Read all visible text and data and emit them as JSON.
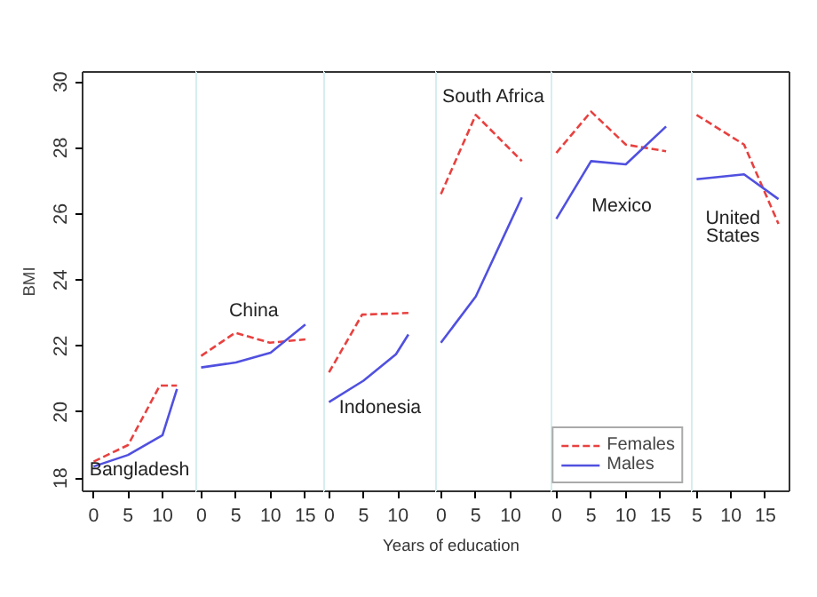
{
  "chart_data": [
    {
      "type": "line",
      "ylabel": "BMI",
      "xlim": [
        -1.6,
        14.9
      ],
      "ylim": [
        17.6,
        30.3
      ],
      "xticks": [
        0,
        5,
        10
      ],
      "yticks": [
        18,
        20,
        22,
        24,
        26,
        28,
        30
      ],
      "annotations": [
        "Bangladesh"
      ],
      "series": [
        {
          "color": "#e8413f",
          "line_style": "dashed",
          "x": [
            0,
            5,
            9.6,
            12.1
          ],
          "values": [
            18.5,
            19.0,
            20.8,
            20.8
          ]
        },
        {
          "color": "#5050e0",
          "line_style": "solid",
          "x": [
            0,
            5,
            10,
            12.1
          ],
          "values": [
            18.35,
            18.7,
            19.3,
            20.7
          ]
        }
      ]
    },
    {
      "type": "line",
      "xlim": [
        -0.7,
        17.7
      ],
      "ylim": [
        17.6,
        30.3
      ],
      "xticks": [
        0,
        5,
        10,
        15
      ],
      "yticks": [
        18,
        20,
        22,
        24,
        26,
        28,
        30
      ],
      "tick_labels": "x",
      "annotations": [
        "China"
      ],
      "series": [
        {
          "color": "#e8413f",
          "line_style": "dashed",
          "x": [
            0,
            4.9,
            9.9,
            15
          ],
          "values": [
            21.7,
            22.4,
            22.1,
            22.2
          ]
        },
        {
          "color": "#5050e0",
          "line_style": "solid",
          "x": [
            0,
            5,
            10,
            15
          ],
          "values": [
            21.35,
            21.5,
            21.8,
            22.65
          ]
        }
      ]
    },
    {
      "type": "line",
      "xlabel": "Years of education",
      "xlim": [
        -0.7,
        15.5
      ],
      "ylim": [
        17.6,
        30.3
      ],
      "xticks": [
        0,
        5,
        10
      ],
      "yticks": [
        18,
        20,
        22,
        24,
        26,
        28,
        30
      ],
      "tick_labels": "x",
      "annotations": [
        "Indonesia"
      ],
      "series": [
        {
          "color": "#e8413f",
          "line_style": "dashed",
          "x": [
            0,
            4.8,
            11.5
          ],
          "values": [
            21.2,
            22.95,
            23.0
          ]
        },
        {
          "color": "#5050e0",
          "line_style": "solid",
          "x": [
            0,
            5,
            9.7,
            11.5
          ],
          "values": [
            20.3,
            20.95,
            21.75,
            22.35
          ]
        }
      ]
    },
    {
      "type": "line",
      "xlim": [
        -0.7,
        15.85
      ],
      "ylim": [
        17.6,
        30.3
      ],
      "xticks": [
        0,
        5,
        10
      ],
      "yticks": [
        18,
        20,
        22,
        24,
        26,
        28,
        30
      ],
      "tick_labels": "x",
      "annotations": [
        "South Africa"
      ],
      "series": [
        {
          "color": "#e8413f",
          "line_style": "dashed",
          "x": [
            0,
            5,
            11.6
          ],
          "values": [
            26.6,
            29.0,
            27.6
          ]
        },
        {
          "color": "#5050e0",
          "line_style": "solid",
          "x": [
            0,
            5,
            11.6
          ],
          "values": [
            22.1,
            23.5,
            26.5
          ]
        }
      ]
    },
    {
      "type": "line",
      "xlim": [
        -0.7,
        19.5
      ],
      "ylim": [
        17.6,
        30.3
      ],
      "xticks": [
        0,
        5,
        10,
        15
      ],
      "yticks": [
        18,
        20,
        22,
        24,
        26,
        28,
        30
      ],
      "tick_labels": "x",
      "annotations": [
        "Mexico"
      ],
      "legend": "bottom right",
      "series": [
        {
          "name": "Females",
          "color": "#e8413f",
          "line_style": "dashed",
          "x": [
            0,
            5,
            10,
            15.8
          ],
          "values": [
            27.85,
            29.1,
            28.1,
            27.9
          ]
        },
        {
          "name": "Males",
          "color": "#5050e0",
          "line_style": "solid",
          "x": [
            0,
            5,
            10,
            15.8
          ],
          "values": [
            25.85,
            27.6,
            27.5,
            28.65
          ]
        }
      ]
    },
    {
      "type": "line",
      "xlim": [
        4.3,
        18.5
      ],
      "ylim": [
        17.6,
        30.3
      ],
      "xticks": [
        5,
        10,
        15
      ],
      "yticks": [
        18,
        20,
        22,
        24,
        26,
        28,
        30
      ],
      "tick_labels": "x",
      "annotations": [
        "United\nStates"
      ],
      "series": [
        {
          "color": "#e8413f",
          "line_style": "dashed",
          "x": [
            5,
            11.9,
            16.9
          ],
          "values": [
            29.0,
            28.1,
            25.7
          ]
        },
        {
          "color": "#5050e0",
          "line_style": "solid",
          "x": [
            5,
            11.9,
            16.9
          ],
          "values": [
            27.05,
            27.2,
            26.45
          ]
        }
      ]
    }
  ]
}
